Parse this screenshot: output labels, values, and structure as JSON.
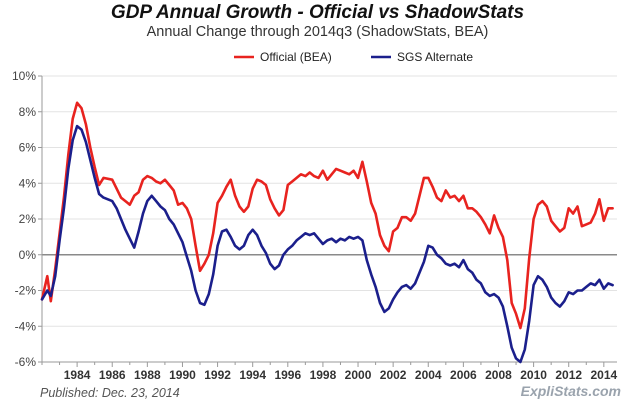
{
  "page": {
    "published": "Published: Dec. 23, 2014",
    "brand": "ExpliStats.com"
  },
  "chart_data": {
    "type": "line",
    "title": "GDP Annual Growth - Official vs ShadowStats",
    "subtitle": "Annual Change through 2014q3  (ShadowStats, BEA)",
    "xlabel": "",
    "ylabel": "",
    "xlim": [
      1982.0,
      2014.75
    ],
    "ylim": [
      -6,
      10
    ],
    "y_ticks": [
      -6,
      -4,
      -2,
      0,
      2,
      4,
      6,
      8,
      10
    ],
    "y_tick_labels": [
      "-6%",
      "-4%",
      "-2%",
      "0%",
      "2%",
      "4%",
      "6%",
      "8%",
      "10%"
    ],
    "x_ticks": [
      1984,
      1986,
      1988,
      1990,
      1992,
      1994,
      1996,
      1998,
      2000,
      2002,
      2004,
      2006,
      2008,
      2010,
      2012,
      2014
    ],
    "x_tick_labels": [
      "1984",
      "1986",
      "1988",
      "1990",
      "1992",
      "1994",
      "1996",
      "1998",
      "2000",
      "2002",
      "2004",
      "2006",
      "2008",
      "2010",
      "2012",
      "2014"
    ],
    "grid": true,
    "zero_line": true,
    "legend": {
      "placement": "top"
    },
    "series": [
      {
        "name": "Official (BEA)",
        "color": "#e8231f",
        "points": [
          [
            1982.0,
            -2.5
          ],
          [
            1982.3,
            -1.2
          ],
          [
            1982.5,
            -2.6
          ],
          [
            1982.75,
            -0.8
          ],
          [
            1983.0,
            1.2
          ],
          [
            1983.25,
            3.2
          ],
          [
            1983.5,
            5.6
          ],
          [
            1983.75,
            7.6
          ],
          [
            1984.0,
            8.5
          ],
          [
            1984.25,
            8.2
          ],
          [
            1984.5,
            7.3
          ],
          [
            1984.75,
            6.0
          ],
          [
            1985.0,
            4.9
          ],
          [
            1985.25,
            3.9
          ],
          [
            1985.5,
            4.3
          ],
          [
            1986.0,
            4.2
          ],
          [
            1986.25,
            3.7
          ],
          [
            1986.5,
            3.2
          ],
          [
            1986.75,
            3.0
          ],
          [
            1987.0,
            2.8
          ],
          [
            1987.25,
            3.3
          ],
          [
            1987.5,
            3.5
          ],
          [
            1987.75,
            4.2
          ],
          [
            1988.0,
            4.4
          ],
          [
            1988.25,
            4.3
          ],
          [
            1988.5,
            4.1
          ],
          [
            1988.75,
            4.0
          ],
          [
            1989.0,
            4.2
          ],
          [
            1989.25,
            3.9
          ],
          [
            1989.5,
            3.6
          ],
          [
            1989.75,
            2.8
          ],
          [
            1990.0,
            2.9
          ],
          [
            1990.25,
            2.6
          ],
          [
            1990.5,
            2.0
          ],
          [
            1990.75,
            0.5
          ],
          [
            1991.0,
            -0.9
          ],
          [
            1991.25,
            -0.5
          ],
          [
            1991.5,
            0.0
          ],
          [
            1991.75,
            1.2
          ],
          [
            1992.0,
            2.9
          ],
          [
            1992.25,
            3.3
          ],
          [
            1992.5,
            3.8
          ],
          [
            1992.75,
            4.2
          ],
          [
            1993.0,
            3.3
          ],
          [
            1993.25,
            2.7
          ],
          [
            1993.5,
            2.4
          ],
          [
            1993.75,
            2.7
          ],
          [
            1994.0,
            3.7
          ],
          [
            1994.25,
            4.2
          ],
          [
            1994.5,
            4.1
          ],
          [
            1994.75,
            3.9
          ],
          [
            1995.0,
            3.1
          ],
          [
            1995.25,
            2.6
          ],
          [
            1995.5,
            2.2
          ],
          [
            1995.75,
            2.5
          ],
          [
            1996.0,
            3.9
          ],
          [
            1996.25,
            4.1
          ],
          [
            1996.5,
            4.3
          ],
          [
            1996.75,
            4.5
          ],
          [
            1997.0,
            4.4
          ],
          [
            1997.25,
            4.6
          ],
          [
            1997.5,
            4.4
          ],
          [
            1997.75,
            4.3
          ],
          [
            1998.0,
            4.7
          ],
          [
            1998.25,
            4.2
          ],
          [
            1998.5,
            4.5
          ],
          [
            1998.75,
            4.8
          ],
          [
            1999.0,
            4.7
          ],
          [
            1999.25,
            4.6
          ],
          [
            1999.5,
            4.5
          ],
          [
            1999.75,
            4.7
          ],
          [
            2000.0,
            4.3
          ],
          [
            2000.25,
            5.2
          ],
          [
            2000.5,
            4.1
          ],
          [
            2000.75,
            2.9
          ],
          [
            2001.0,
            2.3
          ],
          [
            2001.25,
            1.1
          ],
          [
            2001.5,
            0.5
          ],
          [
            2001.75,
            0.2
          ],
          [
            2002.0,
            1.3
          ],
          [
            2002.25,
            1.5
          ],
          [
            2002.5,
            2.1
          ],
          [
            2002.75,
            2.1
          ],
          [
            2003.0,
            1.9
          ],
          [
            2003.25,
            2.3
          ],
          [
            2003.5,
            3.3
          ],
          [
            2003.75,
            4.3
          ],
          [
            2004.0,
            4.3
          ],
          [
            2004.25,
            3.8
          ],
          [
            2004.5,
            3.2
          ],
          [
            2004.75,
            3.0
          ],
          [
            2005.0,
            3.6
          ],
          [
            2005.25,
            3.2
          ],
          [
            2005.5,
            3.3
          ],
          [
            2005.75,
            3.0
          ],
          [
            2006.0,
            3.3
          ],
          [
            2006.25,
            2.6
          ],
          [
            2006.5,
            2.6
          ],
          [
            2006.75,
            2.4
          ],
          [
            2007.0,
            2.1
          ],
          [
            2007.25,
            1.7
          ],
          [
            2007.5,
            1.2
          ],
          [
            2007.75,
            2.2
          ],
          [
            2008.0,
            1.5
          ],
          [
            2008.25,
            1.0
          ],
          [
            2008.5,
            -0.3
          ],
          [
            2008.75,
            -2.7
          ],
          [
            2009.0,
            -3.3
          ],
          [
            2009.25,
            -4.1
          ],
          [
            2009.5,
            -3.0
          ],
          [
            2009.75,
            -0.2
          ],
          [
            2010.0,
            2.0
          ],
          [
            2010.25,
            2.8
          ],
          [
            2010.5,
            3.0
          ],
          [
            2010.75,
            2.7
          ],
          [
            2011.0,
            1.9
          ],
          [
            2011.25,
            1.6
          ],
          [
            2011.5,
            1.3
          ],
          [
            2011.75,
            1.5
          ],
          [
            2012.0,
            2.6
          ],
          [
            2012.25,
            2.3
          ],
          [
            2012.5,
            2.7
          ],
          [
            2012.75,
            1.6
          ],
          [
            2013.0,
            1.7
          ],
          [
            2013.25,
            1.8
          ],
          [
            2013.5,
            2.3
          ],
          [
            2013.75,
            3.1
          ],
          [
            2014.0,
            1.9
          ],
          [
            2014.25,
            2.6
          ],
          [
            2014.5,
            2.6
          ]
        ]
      },
      {
        "name": "SGS Alternate",
        "color": "#1b1f8c",
        "points": [
          [
            1982.0,
            -2.5
          ],
          [
            1982.3,
            -2.0
          ],
          [
            1982.5,
            -2.3
          ],
          [
            1982.75,
            -1.2
          ],
          [
            1983.0,
            0.8
          ],
          [
            1983.25,
            2.6
          ],
          [
            1983.5,
            4.8
          ],
          [
            1983.75,
            6.4
          ],
          [
            1984.0,
            7.2
          ],
          [
            1984.25,
            7.0
          ],
          [
            1984.5,
            6.3
          ],
          [
            1984.75,
            5.3
          ],
          [
            1985.0,
            4.3
          ],
          [
            1985.25,
            3.4
          ],
          [
            1985.5,
            3.2
          ],
          [
            1986.0,
            3.0
          ],
          [
            1986.25,
            2.6
          ],
          [
            1986.5,
            2.0
          ],
          [
            1986.75,
            1.4
          ],
          [
            1987.0,
            0.9
          ],
          [
            1987.25,
            0.4
          ],
          [
            1987.5,
            1.3
          ],
          [
            1987.75,
            2.3
          ],
          [
            1988.0,
            3.0
          ],
          [
            1988.25,
            3.3
          ],
          [
            1988.5,
            3.0
          ],
          [
            1988.75,
            2.7
          ],
          [
            1989.0,
            2.5
          ],
          [
            1989.25,
            2.0
          ],
          [
            1989.5,
            1.7
          ],
          [
            1989.75,
            1.2
          ],
          [
            1990.0,
            0.7
          ],
          [
            1990.25,
            -0.1
          ],
          [
            1990.5,
            -0.9
          ],
          [
            1990.75,
            -2.0
          ],
          [
            1991.0,
            -2.7
          ],
          [
            1991.25,
            -2.8
          ],
          [
            1991.5,
            -2.2
          ],
          [
            1991.75,
            -1.1
          ],
          [
            1992.0,
            0.5
          ],
          [
            1992.25,
            1.3
          ],
          [
            1992.5,
            1.4
          ],
          [
            1992.75,
            1.0
          ],
          [
            1993.0,
            0.5
          ],
          [
            1993.25,
            0.3
          ],
          [
            1993.5,
            0.5
          ],
          [
            1993.75,
            1.1
          ],
          [
            1994.0,
            1.4
          ],
          [
            1994.25,
            1.1
          ],
          [
            1994.5,
            0.5
          ],
          [
            1994.75,
            0.1
          ],
          [
            1995.0,
            -0.5
          ],
          [
            1995.25,
            -0.8
          ],
          [
            1995.5,
            -0.6
          ],
          [
            1995.75,
            0.0
          ],
          [
            1996.0,
            0.3
          ],
          [
            1996.25,
            0.5
          ],
          [
            1996.5,
            0.8
          ],
          [
            1996.75,
            1.0
          ],
          [
            1997.0,
            1.2
          ],
          [
            1997.25,
            1.1
          ],
          [
            1997.5,
            1.2
          ],
          [
            1997.75,
            0.9
          ],
          [
            1998.0,
            0.6
          ],
          [
            1998.25,
            0.8
          ],
          [
            1998.5,
            0.9
          ],
          [
            1998.75,
            0.7
          ],
          [
            1999.0,
            0.9
          ],
          [
            1999.25,
            0.8
          ],
          [
            1999.5,
            1.0
          ],
          [
            1999.75,
            0.9
          ],
          [
            2000.0,
            1.0
          ],
          [
            2000.25,
            0.8
          ],
          [
            2000.5,
            -0.3
          ],
          [
            2000.75,
            -1.1
          ],
          [
            2001.0,
            -1.8
          ],
          [
            2001.25,
            -2.7
          ],
          [
            2001.5,
            -3.2
          ],
          [
            2001.75,
            -3.0
          ],
          [
            2002.0,
            -2.5
          ],
          [
            2002.25,
            -2.1
          ],
          [
            2002.5,
            -1.8
          ],
          [
            2002.75,
            -1.7
          ],
          [
            2003.0,
            -1.9
          ],
          [
            2003.25,
            -1.6
          ],
          [
            2003.5,
            -1.0
          ],
          [
            2003.75,
            -0.4
          ],
          [
            2004.0,
            0.5
          ],
          [
            2004.25,
            0.4
          ],
          [
            2004.5,
            0.0
          ],
          [
            2004.75,
            -0.2
          ],
          [
            2005.0,
            -0.5
          ],
          [
            2005.25,
            -0.6
          ],
          [
            2005.5,
            -0.5
          ],
          [
            2005.75,
            -0.7
          ],
          [
            2006.0,
            -0.3
          ],
          [
            2006.25,
            -0.8
          ],
          [
            2006.5,
            -1.0
          ],
          [
            2006.75,
            -1.4
          ],
          [
            2007.0,
            -1.6
          ],
          [
            2007.25,
            -2.1
          ],
          [
            2007.5,
            -2.3
          ],
          [
            2007.75,
            -2.2
          ],
          [
            2008.0,
            -2.4
          ],
          [
            2008.25,
            -2.9
          ],
          [
            2008.5,
            -4.0
          ],
          [
            2008.75,
            -5.2
          ],
          [
            2009.0,
            -5.8
          ],
          [
            2009.25,
            -6.0
          ],
          [
            2009.5,
            -5.3
          ],
          [
            2009.75,
            -3.7
          ],
          [
            2010.0,
            -1.7
          ],
          [
            2010.25,
            -1.2
          ],
          [
            2010.5,
            -1.4
          ],
          [
            2010.75,
            -1.8
          ],
          [
            2011.0,
            -2.4
          ],
          [
            2011.25,
            -2.7
          ],
          [
            2011.5,
            -2.9
          ],
          [
            2011.75,
            -2.6
          ],
          [
            2012.0,
            -2.1
          ],
          [
            2012.25,
            -2.2
          ],
          [
            2012.5,
            -2.0
          ],
          [
            2012.75,
            -2.0
          ],
          [
            2013.0,
            -1.8
          ],
          [
            2013.25,
            -1.6
          ],
          [
            2013.5,
            -1.7
          ],
          [
            2013.75,
            -1.4
          ],
          [
            2014.0,
            -1.9
          ],
          [
            2014.25,
            -1.6
          ],
          [
            2014.5,
            -1.7
          ]
        ]
      }
    ]
  }
}
